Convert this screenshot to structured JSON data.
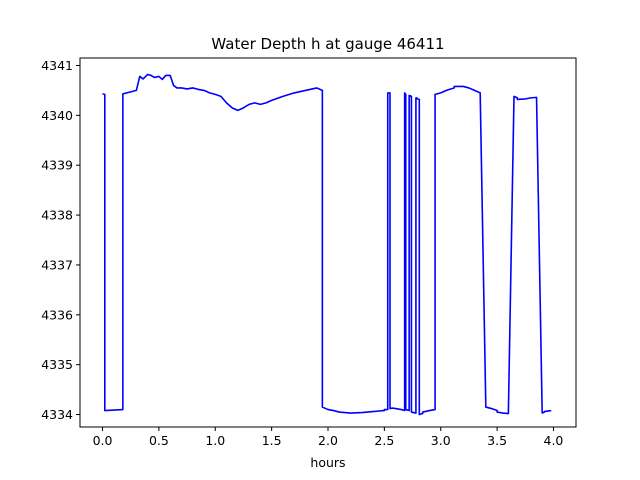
{
  "chart_data": {
    "type": "line",
    "title": "Water Depth h at gauge 46411",
    "xlabel": "hours",
    "ylabel": "",
    "xlim": [
      -0.2,
      4.2
    ],
    "ylim": [
      4333.75,
      4341.15
    ],
    "x_ticks": [
      0.0,
      0.5,
      1.0,
      1.5,
      2.0,
      2.5,
      3.0,
      3.5,
      4.0
    ],
    "x_tick_labels": [
      "0.0",
      "0.5",
      "1.0",
      "1.5",
      "2.0",
      "2.5",
      "3.0",
      "3.5",
      "4.0"
    ],
    "y_ticks": [
      4334,
      4335,
      4336,
      4337,
      4338,
      4339,
      4340,
      4341
    ],
    "y_tick_labels": [
      "4334",
      "4335",
      "4336",
      "4337",
      "4338",
      "4339",
      "4340",
      "4341"
    ],
    "grid": false,
    "legend": "none",
    "series": [
      {
        "color": "#0000ff",
        "x": [
          0.0,
          0.02,
          0.02,
          0.18,
          0.18,
          0.25,
          0.3,
          0.33,
          0.36,
          0.4,
          0.43,
          0.46,
          0.5,
          0.53,
          0.56,
          0.6,
          0.63,
          0.66,
          0.7,
          0.75,
          0.8,
          0.85,
          0.9,
          0.95,
          1.0,
          1.05,
          1.1,
          1.15,
          1.2,
          1.25,
          1.3,
          1.35,
          1.4,
          1.45,
          1.5,
          1.6,
          1.7,
          1.8,
          1.9,
          1.95,
          1.95,
          2.0,
          2.05,
          2.1,
          2.15,
          2.2,
          2.3,
          2.4,
          2.5,
          2.5,
          2.53,
          2.53,
          2.55,
          2.55,
          2.57,
          2.6,
          2.65,
          2.68,
          2.68,
          2.69,
          2.69,
          2.72,
          2.72,
          2.74,
          2.74,
          2.78,
          2.78,
          2.79,
          2.79,
          2.81,
          2.81,
          2.84,
          2.84,
          2.9,
          2.95,
          2.95,
          3.0,
          3.05,
          3.12,
          3.12,
          3.2,
          3.25,
          3.3,
          3.35,
          3.4,
          3.45,
          3.5,
          3.5,
          3.55,
          3.6,
          3.65,
          3.68,
          3.68,
          3.75,
          3.8,
          3.85,
          3.9,
          3.92,
          3.92,
          3.95,
          3.98
        ],
        "y": [
          4340.43,
          4340.42,
          4334.08,
          4334.1,
          4340.43,
          4340.47,
          4340.5,
          4340.78,
          4340.73,
          4340.82,
          4340.8,
          4340.76,
          4340.78,
          4340.72,
          4340.8,
          4340.8,
          4340.6,
          4340.55,
          4340.55,
          4340.53,
          4340.55,
          4340.52,
          4340.5,
          4340.45,
          4340.42,
          4340.38,
          4340.25,
          4340.15,
          4340.1,
          4340.15,
          4340.22,
          4340.25,
          4340.22,
          4340.25,
          4340.3,
          4340.38,
          4340.45,
          4340.5,
          4340.55,
          4340.5,
          4334.15,
          4334.1,
          4334.08,
          4334.05,
          4334.04,
          4334.03,
          4334.04,
          4334.06,
          4334.08,
          4334.1,
          4334.1,
          4340.45,
          4340.45,
          4334.12,
          4334.13,
          4334.12,
          4334.1,
          4334.08,
          4340.45,
          4340.42,
          4334.1,
          4334.08,
          4340.4,
          4340.38,
          4334.05,
          4334.03,
          4340.35,
          4340.35,
          4340.33,
          4340.32,
          4334.0,
          4334.02,
          4334.05,
          4334.08,
          4334.1,
          4340.42,
          4340.45,
          4340.5,
          4340.55,
          4340.58,
          4340.58,
          4340.55,
          4340.5,
          4340.45,
          4334.15,
          4334.12,
          4334.08,
          4334.05,
          4334.03,
          4334.02,
          4340.38,
          4340.35,
          4340.32,
          4340.33,
          4340.35,
          4340.36,
          4334.03,
          4334.05,
          4334.06,
          4334.07,
          4334.08
        ]
      }
    ]
  }
}
